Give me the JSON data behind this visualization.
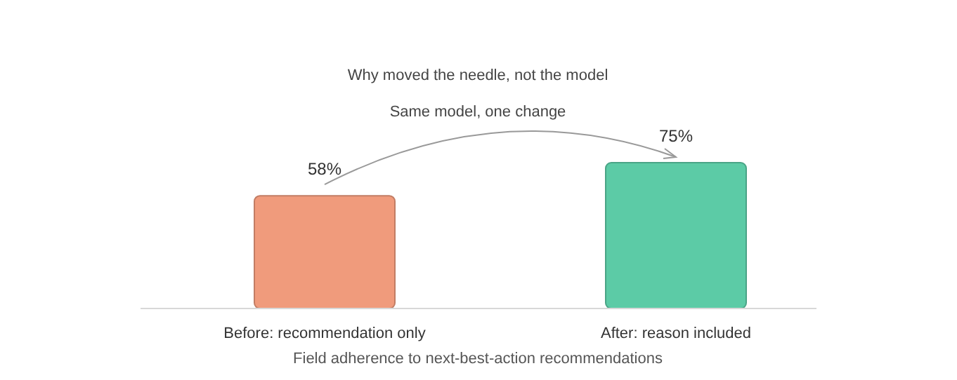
{
  "chart_data": {
    "type": "bar",
    "title": "Why moved the needle, not the model",
    "subtitle": "Same model, one change",
    "xlabel": "Field adherence to next-best-action recommendations",
    "categories": [
      "Before: recommendation only",
      "After: reason included"
    ],
    "values": [
      58,
      75
    ],
    "colors": [
      "#f09b7c",
      "#5ccba6"
    ],
    "value_labels": [
      "58%",
      "75%"
    ],
    "relative": false
  }
}
